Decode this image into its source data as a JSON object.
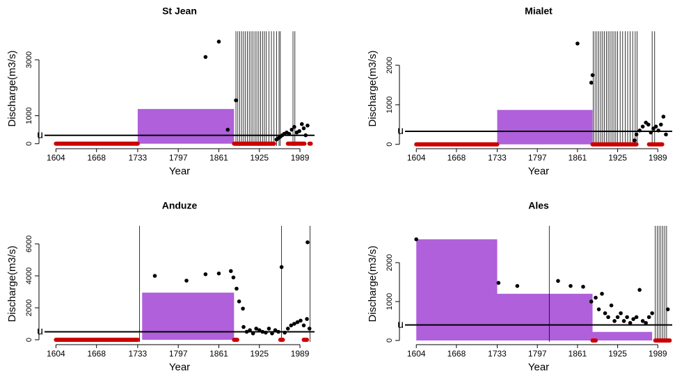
{
  "chart_data": [
    {
      "type": "scatter",
      "title": "St Jean",
      "xlabel": "Year",
      "ylabel": "Discharge(m3/s)",
      "xlim": [
        1586,
        2012
      ],
      "ylim": [
        -80,
        4020
      ],
      "xticks": [
        1604,
        1668,
        1733,
        1797,
        1861,
        1925,
        1989
      ],
      "yticks": [
        0,
        1000,
        3000
      ],
      "threshold": {
        "label": "u",
        "value": 300
      },
      "block_color": "#a64fd6",
      "point_color": "#000000",
      "zero_color": "#cc0000",
      "blocks": [
        {
          "start": 1733,
          "end": 1885,
          "value": 1240
        }
      ],
      "x": [
        1840,
        1861,
        1875,
        1888,
        1952,
        1955,
        1958,
        1961,
        1964,
        1968,
        1972,
        1976,
        1980,
        1984,
        1988,
        1992,
        1995,
        1998,
        2001
      ],
      "values": [
        3100,
        3650,
        500,
        1550,
        150,
        200,
        250,
        300,
        350,
        400,
        350,
        500,
        600,
        400,
        450,
        700,
        550,
        300,
        650
      ],
      "vertical_lines": [
        1888,
        1891,
        1894,
        1897,
        1900,
        1903,
        1906,
        1909,
        1912,
        1915,
        1918,
        1921,
        1924,
        1927,
        1930,
        1933,
        1936,
        1940,
        1944,
        1948,
        1952,
        1956,
        1958,
        1978,
        1981
      ],
      "zero_periods": [
        [
          1604,
          1733
        ],
        [
          1885,
          1948
        ],
        [
          1970,
          1996
        ],
        [
          2004,
          2006
        ]
      ]
    },
    {
      "type": "scatter",
      "title": "Mialet",
      "xlabel": "Year",
      "ylabel": "Discharge(m3/s)",
      "xlim": [
        1586,
        2012
      ],
      "ylim": [
        -40,
        2860
      ],
      "xticks": [
        1604,
        1668,
        1733,
        1797,
        1861,
        1925,
        1989
      ],
      "yticks": [
        0,
        1000,
        2000
      ],
      "threshold": {
        "label": "u",
        "value": 330
      },
      "block_color": "#a64fd6",
      "point_color": "#000000",
      "zero_color": "#cc0000",
      "blocks": [
        {
          "start": 1733,
          "end": 1885,
          "value": 870
        }
      ],
      "x": [
        1861,
        1883,
        1885,
        1952,
        1955,
        1960,
        1965,
        1970,
        1974,
        1978,
        1982,
        1986,
        1990,
        1994,
        1998,
        2002
      ],
      "values": [
        2550,
        1560,
        1750,
        100,
        250,
        350,
        450,
        550,
        500,
        300,
        400,
        450,
        350,
        500,
        700,
        250
      ],
      "vertical_lines": [
        1886,
        1889,
        1892,
        1895,
        1898,
        1901,
        1904,
        1907,
        1910,
        1913,
        1916,
        1919,
        1922,
        1925,
        1929,
        1933,
        1937,
        1941,
        1945,
        1949,
        1953,
        1956,
        1980,
        1984
      ],
      "zero_periods": [
        [
          1604,
          1733
        ],
        [
          1885,
          1955
        ],
        [
          1975,
          1996
        ]
      ]
    },
    {
      "type": "scatter",
      "title": "Anduze",
      "xlabel": "Year",
      "ylabel": "Discharge(m3/s)",
      "xlim": [
        1586,
        2012
      ],
      "ylim": [
        -130,
        7130
      ],
      "xticks": [
        1604,
        1668,
        1733,
        1797,
        1861,
        1925,
        1989
      ],
      "yticks": [
        0,
        2000,
        4000,
        6000
      ],
      "threshold": {
        "label": "u",
        "value": 500
      },
      "block_color": "#a64fd6",
      "point_color": "#000000",
      "zero_color": "#cc0000",
      "blocks": [
        {
          "start": 1740,
          "end": 1885,
          "value": 2950
        }
      ],
      "x": [
        1760,
        1810,
        1840,
        1861,
        1880,
        1884,
        1889,
        1893,
        1899,
        1900,
        1905,
        1910,
        1915,
        1920,
        1925,
        1930,
        1935,
        1940,
        1945,
        1950,
        1955,
        1960,
        1965,
        1970,
        1975,
        1980,
        1985,
        1990,
        1995,
        2000,
        2001,
        2004
      ],
      "values": [
        4000,
        3700,
        4100,
        4150,
        4300,
        3900,
        3200,
        2400,
        1950,
        800,
        500,
        600,
        400,
        700,
        600,
        500,
        450,
        700,
        400,
        600,
        500,
        4550,
        450,
        700,
        900,
        1000,
        1100,
        1200,
        900,
        1300,
        6100,
        700
      ],
      "vertical_lines": [
        1736,
        1960,
        2005
      ],
      "zero_periods": [
        [
          1604,
          1733
        ],
        [
          1885,
          1890
        ],
        [
          1958,
          1962
        ],
        [
          1995,
          2000
        ]
      ]
    },
    {
      "type": "scatter",
      "title": "Ales",
      "xlabel": "Year",
      "ylabel": "Discharge(m3/s)",
      "xlim": [
        1586,
        2012
      ],
      "ylim": [
        -36,
        2946
      ],
      "xticks": [
        1604,
        1668,
        1733,
        1797,
        1861,
        1925,
        1989
      ],
      "yticks": [
        0,
        1000,
        2000
      ],
      "threshold": {
        "label": "u",
        "value": 400
      },
      "block_color": "#a64fd6",
      "point_color": "#000000",
      "zero_color": "#cc0000",
      "blocks": [
        {
          "start": 1604,
          "end": 1733,
          "value": 2600
        },
        {
          "start": 1733,
          "end": 1885,
          "value": 1200
        },
        {
          "start": 1885,
          "end": 1980,
          "value": 220
        }
      ],
      "x": [
        1604,
        1735,
        1765,
        1830,
        1850,
        1870,
        1883,
        1890,
        1895,
        1900,
        1905,
        1910,
        1915,
        1920,
        1925,
        1930,
        1935,
        1940,
        1945,
        1950,
        1955,
        1960,
        1965,
        1970,
        1975,
        1980,
        2005
      ],
      "values": [
        2600,
        1480,
        1400,
        1530,
        1400,
        1380,
        1000,
        1100,
        800,
        1200,
        700,
        600,
        900,
        500,
        600,
        700,
        500,
        600,
        450,
        550,
        600,
        1300,
        500,
        450,
        600,
        700,
        800
      ],
      "vertical_lines": [
        1816,
        1985,
        1988,
        1991,
        1994,
        1997,
        2000,
        2003
      ],
      "zero_periods": [
        [
          1885,
          1890
        ],
        [
          1985,
          2008
        ]
      ]
    }
  ]
}
